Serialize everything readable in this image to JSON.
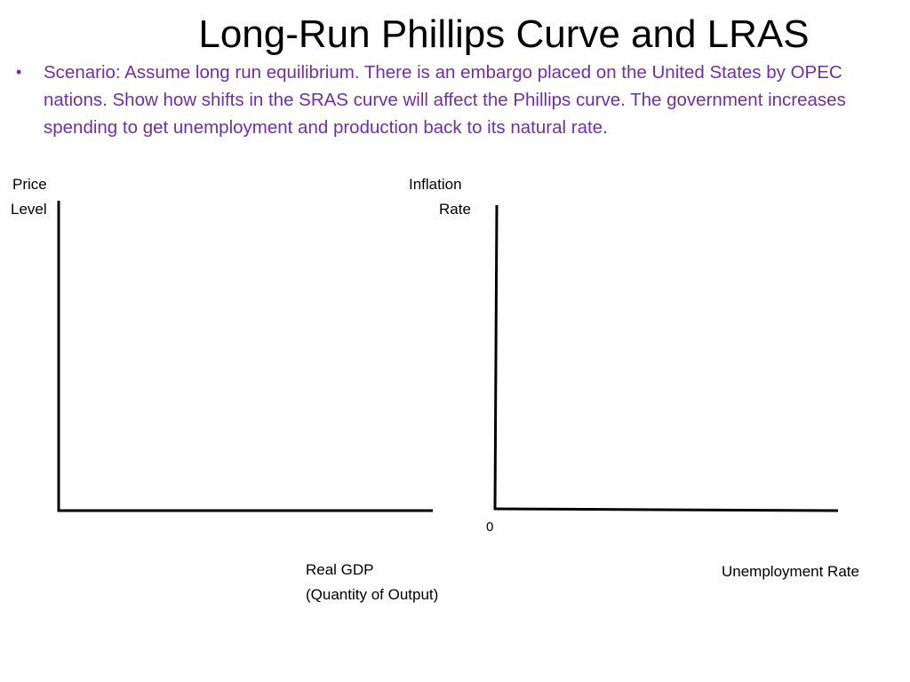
{
  "slide": {
    "title": "Long-Run Phillips Curve and LRAS",
    "bullet": "Scenario:  Assume long run equilibrium. There is an embargo placed on the United States by OPEC nations. Show how shifts in the SRAS curve will affect the Phillips curve. The government increases spending to get unemployment and production back to its natural rate.",
    "bullet_color": "#7030a0"
  },
  "left_graph": {
    "y_label_1": "Price",
    "y_label_2": "Level",
    "x_label_1": "Real GDP",
    "x_label_2": "(Quantity of Output)"
  },
  "right_graph": {
    "y_label_1": "Inflation",
    "y_label_2": "Rate",
    "origin_label": "0",
    "x_label": "Unemployment Rate"
  }
}
